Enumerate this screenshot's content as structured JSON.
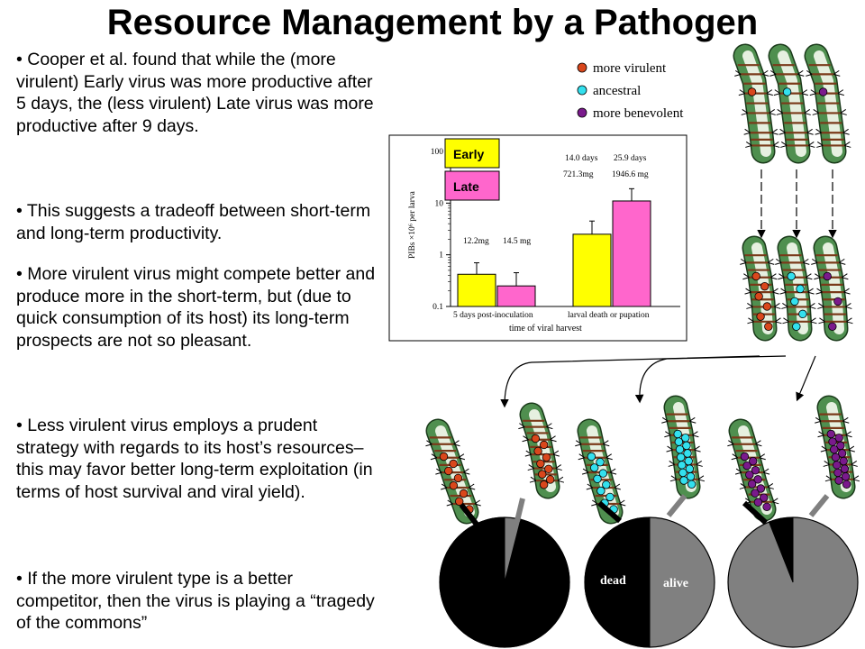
{
  "title": "Resource Management by a Pathogen",
  "bullets": [
    "• Cooper et al. found that while the (more virulent) Early virus was more productive after 5 days, the (less virulent) Late virus was more productive after 9 days.",
    "• This suggests a tradeoff between short-term and long-term productivity.",
    "• More virulent virus might compete better and produce more in the short-term, but (due to quick consumption of its host) its long-term prospects are not so pleasant.",
    "• Less virulent virus employs a prudent strategy with regards to its host’s resources– this may favor better long-term exploitation (in terms of host survival and viral yield).",
    "• If the more virulent type is a better competitor, then the virus is playing a “tragedy of the commons”"
  ],
  "legend": [
    {
      "label": "more virulent",
      "color": "#d9471c"
    },
    {
      "label": "ancestral",
      "color": "#33e0ee"
    },
    {
      "label": "more benevolent",
      "color": "#7a1a8c"
    }
  ],
  "pies": {
    "dead_label": "dead",
    "alive_label": "alive",
    "dead_color": "#000000",
    "alive_color": "#808080",
    "dead_fractions": [
      0.96,
      0.5,
      0.06
    ]
  },
  "chart_data": {
    "type": "bar",
    "categories": [
      "5 days post-inoculation",
      "larval death or pupation"
    ],
    "series": [
      {
        "name": "Early",
        "color": "#ffff00",
        "values": [
          0.42,
          2.5
        ],
        "errors": [
          0.7,
          4.5
        ]
      },
      {
        "name": "Late",
        "color": "#ff66cc",
        "values": [
          0.25,
          11
        ],
        "errors": [
          0.45,
          19
        ]
      }
    ],
    "xlabel": "time of viral harvest",
    "ylabel": "PIBs ×10⁶ per larva",
    "yscale": "log",
    "ylim": [
      0.1,
      100
    ],
    "yticks": [
      "100",
      "10",
      "1",
      "0.1"
    ],
    "annotations": [
      "12.2mg",
      "14.5 mg",
      "14.0 days",
      "25.9 days",
      "721.3mg",
      "1946.6 mg"
    ]
  }
}
